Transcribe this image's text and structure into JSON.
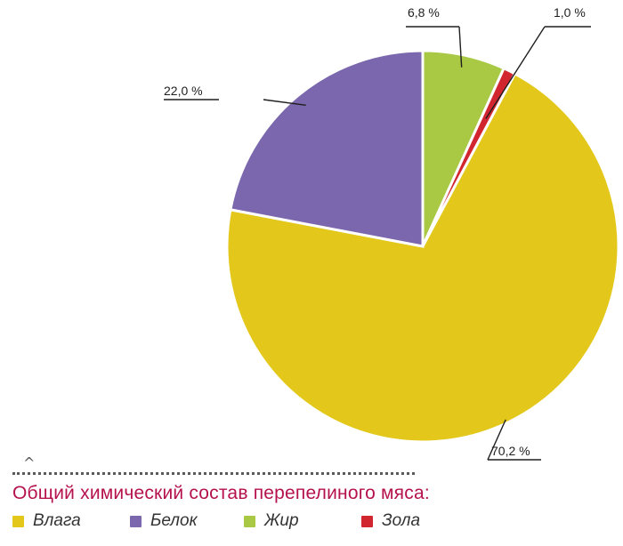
{
  "chart_data": {
    "type": "pie",
    "title": "Общий химический состав перепелиного мяса:",
    "categories": [
      "Влага",
      "Белок",
      "Жир",
      "Зола"
    ],
    "values": [
      70.2,
      22.0,
      6.8,
      1.0
    ],
    "value_labels": [
      "70,2 %",
      "22,0 %",
      "6,8 %",
      "1,0 %"
    ],
    "colors": [
      "#e3c81b",
      "#7a67ad",
      "#a9c843",
      "#d1262f"
    ],
    "legend_placement": "bottom-left"
  }
}
